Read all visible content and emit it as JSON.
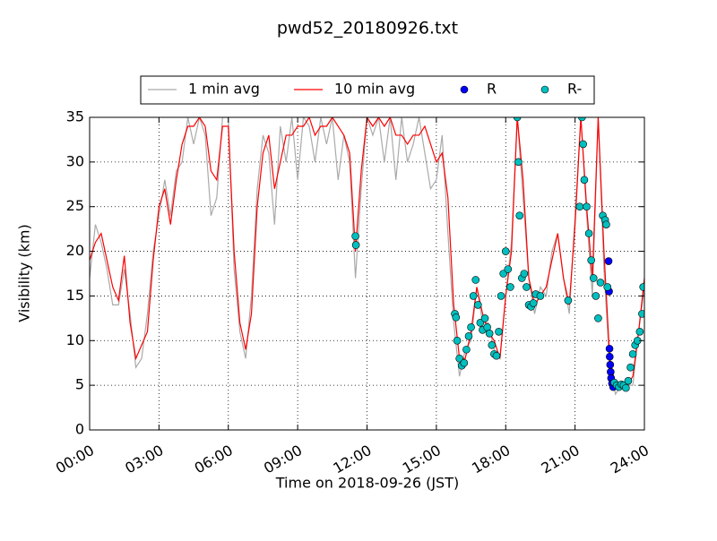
{
  "chart_data": {
    "type": "line",
    "title": "pwd52_20180926.txt",
    "x_label": "Time on 2018-09-26 (JST)",
    "y_label": "Visibility (km)",
    "xlim": [
      0,
      24
    ],
    "ylim": [
      0,
      35
    ],
    "xticks": [
      {
        "value": 0,
        "label": "00:00"
      },
      {
        "value": 3,
        "label": "03:00"
      },
      {
        "value": 6,
        "label": "06:00"
      },
      {
        "value": 9,
        "label": "09:00"
      },
      {
        "value": 12,
        "label": "12:00"
      },
      {
        "value": 15,
        "label": "15:00"
      },
      {
        "value": 18,
        "label": "18:00"
      },
      {
        "value": 21,
        "label": "21:00"
      },
      {
        "value": 24,
        "label": "24:00"
      }
    ],
    "yticks": [
      0,
      5,
      10,
      15,
      20,
      25,
      30,
      35
    ],
    "grid": true,
    "x": [
      0,
      0.25,
      0.5,
      0.75,
      1,
      1.25,
      1.5,
      1.75,
      2,
      2.25,
      2.5,
      2.75,
      3,
      3.25,
      3.5,
      3.75,
      4,
      4.25,
      4.5,
      4.75,
      5,
      5.25,
      5.5,
      5.75,
      6,
      6.25,
      6.5,
      6.75,
      7,
      7.25,
      7.5,
      7.75,
      8,
      8.25,
      8.5,
      8.75,
      9,
      9.25,
      9.5,
      9.75,
      10,
      10.25,
      10.5,
      10.75,
      11,
      11.25,
      11.5,
      11.75,
      12,
      12.25,
      12.5,
      12.75,
      13,
      13.25,
      13.5,
      13.75,
      14,
      14.25,
      14.5,
      14.75,
      15,
      15.25,
      15.5,
      15.75,
      16,
      16.25,
      16.5,
      16.75,
      17,
      17.25,
      17.5,
      17.75,
      18,
      18.25,
      18.5,
      18.75,
      19,
      19.25,
      19.5,
      19.75,
      20,
      20.25,
      20.5,
      20.75,
      21,
      21.25,
      21.5,
      21.75,
      22,
      22.25,
      22.5,
      22.75,
      23,
      23.25,
      23.5,
      23.75,
      24
    ],
    "series": [
      {
        "name": "1 min avg",
        "kind": "line",
        "color": "#aaaaaa",
        "values": [
          17,
          23,
          21,
          18,
          14,
          14,
          18,
          13,
          7,
          8,
          13,
          20,
          24,
          28,
          24,
          29,
          30,
          35,
          32,
          35,
          33,
          24,
          26,
          35,
          35,
          18,
          11,
          8,
          15,
          27,
          33,
          31,
          23,
          34,
          30,
          35,
          28,
          35,
          34,
          30,
          35,
          32,
          35,
          28,
          33,
          30,
          17,
          27,
          35,
          33,
          35,
          30,
          35,
          28,
          35,
          30,
          32,
          35,
          31,
          27,
          28,
          33,
          22,
          12,
          6,
          9,
          10,
          16,
          12,
          12,
          9,
          8,
          15,
          21,
          35,
          26,
          17,
          13,
          16,
          15,
          20,
          22,
          17,
          13,
          24,
          35,
          24,
          15,
          35,
          18,
          7,
          4,
          5,
          5,
          5,
          11,
          16
        ]
      },
      {
        "name": "10 min avg",
        "kind": "line",
        "color": "#ff0000",
        "values": [
          19,
          21,
          22,
          19,
          16,
          14.5,
          19.5,
          12,
          8,
          9.5,
          11,
          19,
          25,
          27,
          23,
          28,
          32,
          34,
          34,
          35,
          34,
          29,
          28,
          34,
          34,
          20,
          12,
          9,
          13,
          25,
          31,
          33,
          27,
          30,
          33,
          33,
          34,
          34,
          35,
          33,
          34,
          34,
          35,
          34,
          33,
          31,
          20,
          29,
          35,
          34,
          35,
          34,
          35,
          33,
          33,
          32,
          33,
          33,
          34,
          32,
          30,
          31,
          26,
          14,
          8,
          8,
          11,
          16,
          13,
          11,
          10,
          8,
          15,
          20,
          35,
          28,
          17,
          14,
          15,
          16,
          19,
          22,
          17,
          14,
          23,
          35,
          25,
          17,
          35,
          20,
          8,
          5,
          5,
          5,
          6,
          11,
          17
        ]
      },
      {
        "name": "R",
        "kind": "scatter",
        "color": "#0000ff",
        "x": [
          22.45,
          22.47,
          22.49,
          22.5,
          22.52,
          22.54,
          22.56,
          22.6,
          22.65
        ],
        "values": [
          18.9,
          15.5,
          9.1,
          8.2,
          7.3,
          6.5,
          5.8,
          5.2,
          4.8
        ]
      },
      {
        "name": "R-",
        "kind": "scatter",
        "color": "#00bfbf",
        "x": [
          11.5,
          11.52,
          15.8,
          15.85,
          15.9,
          16.0,
          16.1,
          16.2,
          16.3,
          16.4,
          16.5,
          16.6,
          16.7,
          16.8,
          16.9,
          17.0,
          17.1,
          17.2,
          17.3,
          17.4,
          17.5,
          17.6,
          17.7,
          17.8,
          17.9,
          18.0,
          18.1,
          18.2,
          18.5,
          18.55,
          18.6,
          18.7,
          18.8,
          18.9,
          19.0,
          19.1,
          19.2,
          19.3,
          19.5,
          20.7,
          21.2,
          21.3,
          21.35,
          21.4,
          21.5,
          21.6,
          21.7,
          21.8,
          21.9,
          22.0,
          22.1,
          22.2,
          22.3,
          22.35,
          22.4,
          22.7,
          22.8,
          22.9,
          23.0,
          23.1,
          23.2,
          23.3,
          23.4,
          23.5,
          23.6,
          23.7,
          23.8,
          23.9,
          23.95
        ],
        "values": [
          21.7,
          20.7,
          13,
          12.6,
          10,
          8,
          7.2,
          7.5,
          9,
          10.5,
          11.5,
          15,
          16.8,
          14,
          12,
          11.2,
          12.5,
          11.5,
          10.8,
          9.5,
          8.5,
          8.3,
          11,
          15,
          17.5,
          20,
          18,
          16,
          35,
          30,
          24,
          17,
          17.5,
          16,
          14,
          13.8,
          14.2,
          15.2,
          15,
          14.5,
          25,
          35,
          32,
          28,
          25,
          22,
          19,
          17,
          15,
          12.5,
          16.5,
          24,
          23.5,
          23,
          16,
          5.3,
          5,
          4.8,
          5.1,
          5,
          4.7,
          5.5,
          7,
          8.5,
          9.5,
          10,
          11,
          13,
          16
        ]
      }
    ],
    "legend": "top-outside"
  }
}
